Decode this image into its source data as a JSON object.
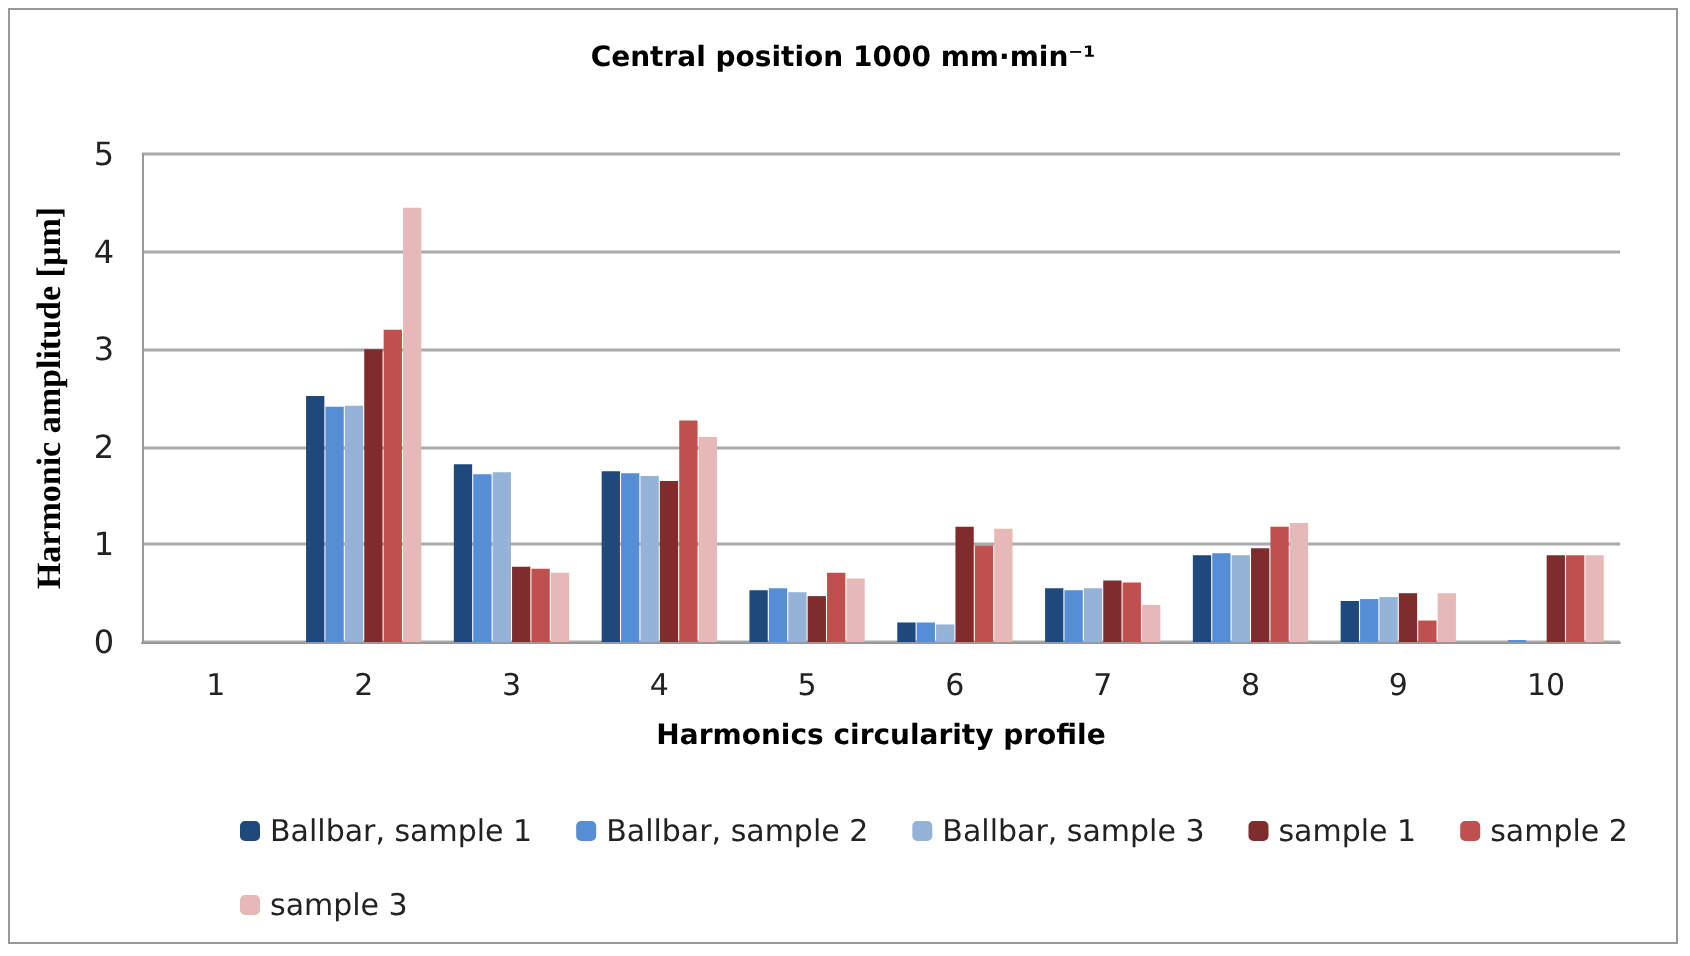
{
  "chart_data": {
    "type": "bar",
    "title": "Central position 1000 mm·min⁻¹",
    "xlabel": "Harmonics circularity profile",
    "ylabel": "Harmonic amplitude [µm]",
    "categories": [
      "1",
      "2",
      "3",
      "4",
      "5",
      "6",
      "7",
      "8",
      "9",
      "10"
    ],
    "series": [
      {
        "name": "Ballbar, sample 1",
        "color": "#1f497d",
        "values": [
          0,
          2.52,
          1.82,
          1.75,
          0.53,
          0.2,
          0.55,
          0.89,
          0.42,
          0
        ]
      },
      {
        "name": "Ballbar, sample 2",
        "color": "#558ed5",
        "values": [
          0,
          2.41,
          1.72,
          1.73,
          0.55,
          0.2,
          0.53,
          0.91,
          0.44,
          0.02
        ]
      },
      {
        "name": "Ballbar, sample 3",
        "color": "#95b3d7",
        "values": [
          0,
          2.42,
          1.74,
          1.7,
          0.51,
          0.18,
          0.55,
          0.89,
          0.46,
          0
        ]
      },
      {
        "name": "sample 1",
        "color": "#7f2c2c",
        "values": [
          0,
          3.0,
          0.77,
          1.65,
          0.47,
          1.18,
          0.63,
          0.96,
          0.5,
          0.89
        ]
      },
      {
        "name": "sample 2",
        "color": "#c0504d",
        "values": [
          0,
          3.2,
          0.75,
          2.27,
          0.71,
          0.99,
          0.61,
          1.18,
          0.22,
          0.89
        ]
      },
      {
        "name": "sample 3",
        "color": "#e6b9b8",
        "values": [
          0,
          4.45,
          0.71,
          2.1,
          0.65,
          1.16,
          0.38,
          1.22,
          0.5,
          0.89
        ]
      }
    ],
    "ylim": [
      0,
      5
    ],
    "yticks": [
      0,
      1,
      2,
      3,
      4,
      5
    ],
    "grid": "y",
    "legend": "bottom"
  }
}
